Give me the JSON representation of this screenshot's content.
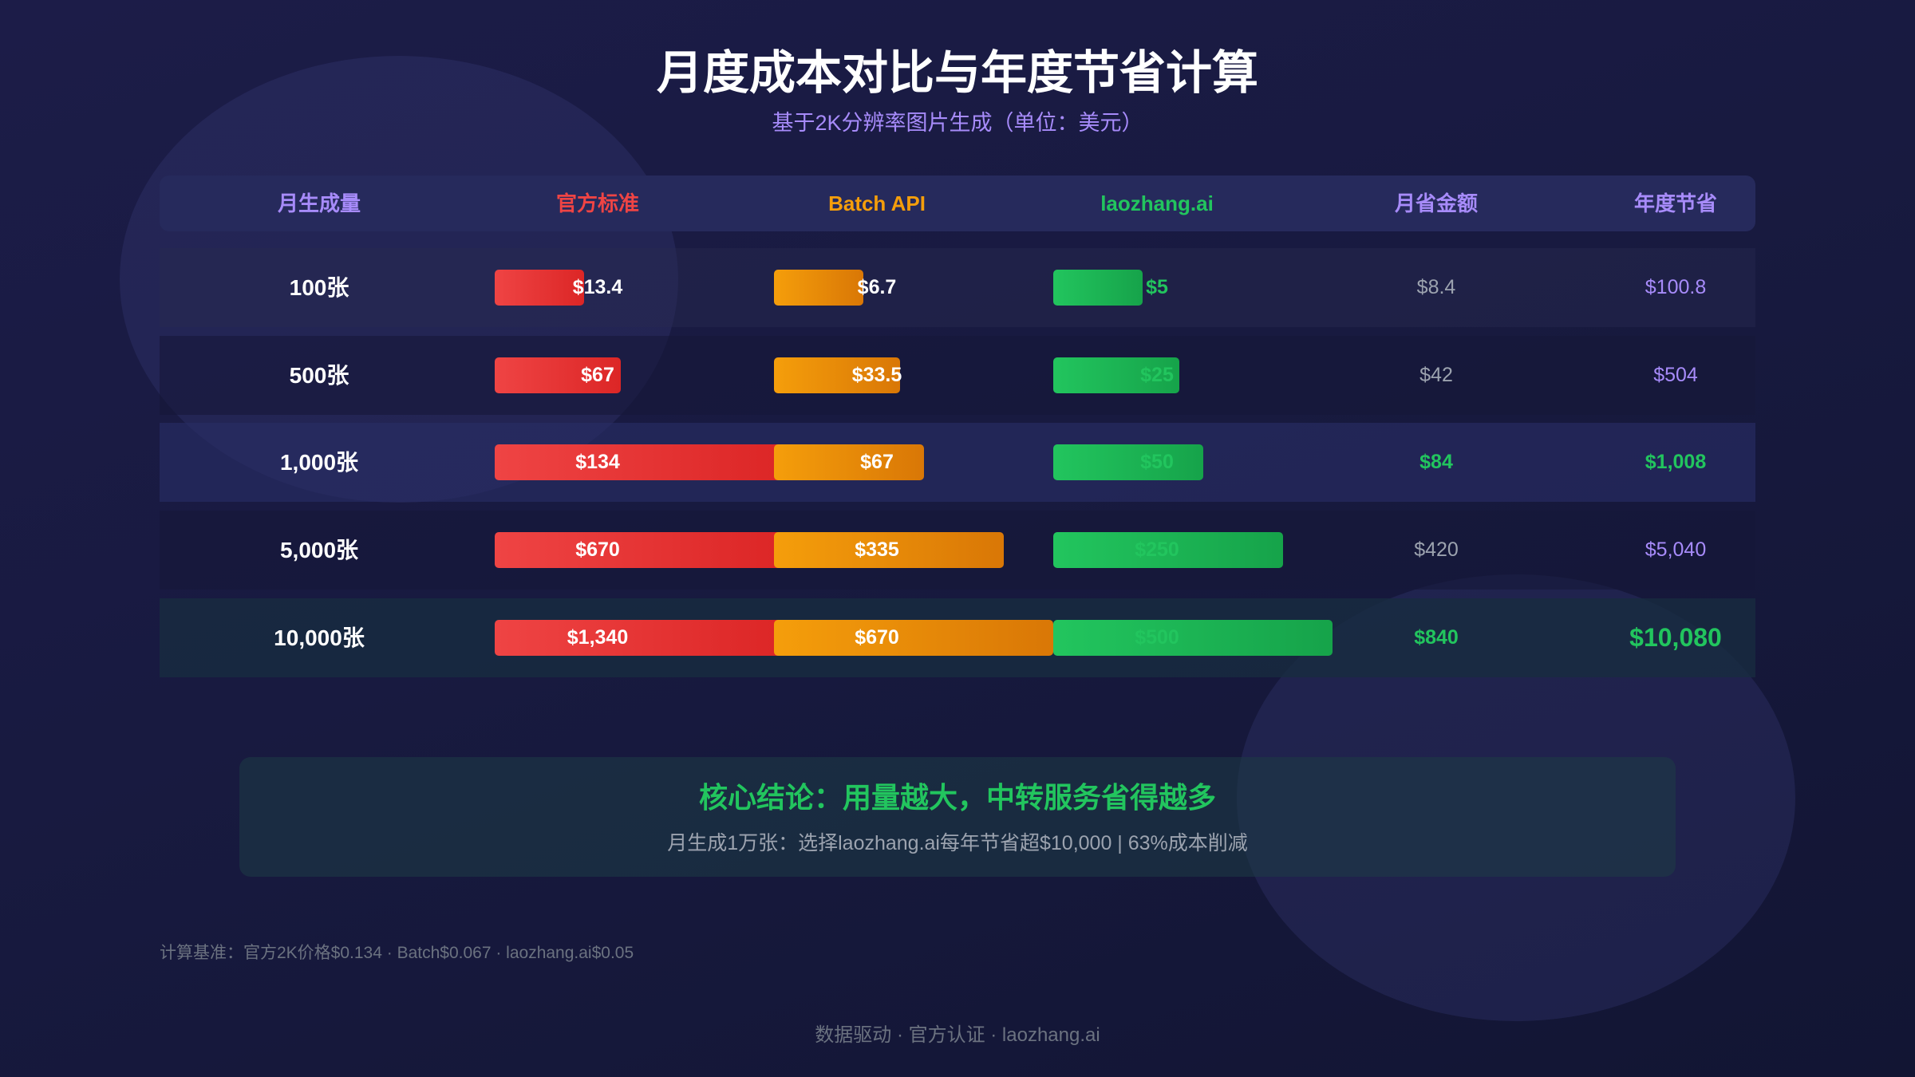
{
  "title": "月度成本对比与年度节省计算",
  "subtitle": "基于2K分辨率图片生成（单位：美元）",
  "colors": {
    "official": "#ef4444",
    "batch": "#f59e0b",
    "laozhang": "#22c55e",
    "accent": "#a78bfa",
    "muted": "#9ca3af"
  },
  "chart_data": {
    "type": "table",
    "headers": [
      "月生成量",
      "官方标准",
      "Batch API",
      "laozhang.ai",
      "月省金额",
      "年度节省"
    ],
    "categories": [
      "100张",
      "500张",
      "1,000张",
      "5,000张",
      "10,000张"
    ],
    "series": [
      {
        "name": "官方标准",
        "values": [
          13.4,
          67,
          134,
          670,
          1340
        ],
        "labels": [
          "$13.4",
          "$67",
          "$134",
          "$670",
          "$1,340"
        ]
      },
      {
        "name": "Batch API",
        "values": [
          6.7,
          33.5,
          67,
          335,
          670
        ],
        "labels": [
          "$6.7",
          "$33.5",
          "$67",
          "$335",
          "$670"
        ]
      },
      {
        "name": "laozhang.ai",
        "values": [
          5,
          25,
          50,
          250,
          500
        ],
        "labels": [
          "$5",
          "$25",
          "$50",
          "$250",
          "$500"
        ]
      }
    ],
    "monthly_savings": [
      "$8.4",
      "$42",
      "$84",
      "$420",
      "$840"
    ],
    "annual_savings": [
      "$100.8",
      "$504",
      "$1,008",
      "$5,040",
      "$10,080"
    ],
    "highlight_rows": [
      2,
      4
    ]
  },
  "conclusion": {
    "title": "核心结论：用量越大，中转服务省得越多",
    "detail": "月生成1万张：选择laozhang.ai每年节省超$10,000 | 63%成本削减"
  },
  "footnote": "计算基准：官方2K价格$0.134 · Batch$0.067 · laozhang.ai$0.05",
  "bottom_tagline": "数据驱动 · 官方认证 · laozhang.ai"
}
